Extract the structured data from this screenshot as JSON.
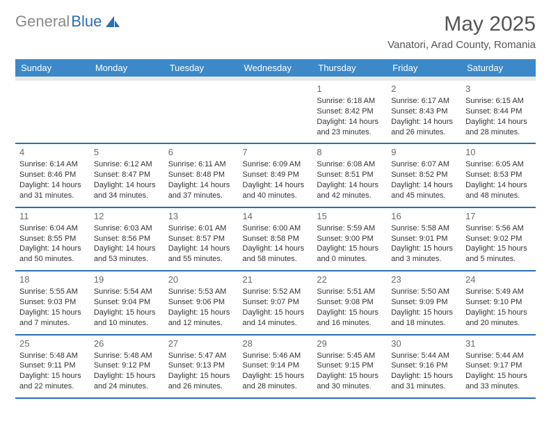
{
  "logo": {
    "word1": "General",
    "word2": "Blue"
  },
  "title": "May 2025",
  "location": "Vanatori, Arad County, Romania",
  "colors": {
    "header_bg": "#3b89c9",
    "header_underline": "#e8e8e8",
    "row_divider": "#2a6db8",
    "logo_gray": "#8a8a8a",
    "logo_blue": "#2a6db8",
    "text": "#333333",
    "muted": "#6a6a6a"
  },
  "weekdays": [
    "Sunday",
    "Monday",
    "Tuesday",
    "Wednesday",
    "Thursday",
    "Friday",
    "Saturday"
  ],
  "weeks": [
    [
      null,
      null,
      null,
      null,
      {
        "n": "1",
        "sr": "6:18 AM",
        "ss": "8:42 PM",
        "dl": "14 hours and 23 minutes."
      },
      {
        "n": "2",
        "sr": "6:17 AM",
        "ss": "8:43 PM",
        "dl": "14 hours and 26 minutes."
      },
      {
        "n": "3",
        "sr": "6:15 AM",
        "ss": "8:44 PM",
        "dl": "14 hours and 28 minutes."
      }
    ],
    [
      {
        "n": "4",
        "sr": "6:14 AM",
        "ss": "8:46 PM",
        "dl": "14 hours and 31 minutes."
      },
      {
        "n": "5",
        "sr": "6:12 AM",
        "ss": "8:47 PM",
        "dl": "14 hours and 34 minutes."
      },
      {
        "n": "6",
        "sr": "6:11 AM",
        "ss": "8:48 PM",
        "dl": "14 hours and 37 minutes."
      },
      {
        "n": "7",
        "sr": "6:09 AM",
        "ss": "8:49 PM",
        "dl": "14 hours and 40 minutes."
      },
      {
        "n": "8",
        "sr": "6:08 AM",
        "ss": "8:51 PM",
        "dl": "14 hours and 42 minutes."
      },
      {
        "n": "9",
        "sr": "6:07 AM",
        "ss": "8:52 PM",
        "dl": "14 hours and 45 minutes."
      },
      {
        "n": "10",
        "sr": "6:05 AM",
        "ss": "8:53 PM",
        "dl": "14 hours and 48 minutes."
      }
    ],
    [
      {
        "n": "11",
        "sr": "6:04 AM",
        "ss": "8:55 PM",
        "dl": "14 hours and 50 minutes."
      },
      {
        "n": "12",
        "sr": "6:03 AM",
        "ss": "8:56 PM",
        "dl": "14 hours and 53 minutes."
      },
      {
        "n": "13",
        "sr": "6:01 AM",
        "ss": "8:57 PM",
        "dl": "14 hours and 55 minutes."
      },
      {
        "n": "14",
        "sr": "6:00 AM",
        "ss": "8:58 PM",
        "dl": "14 hours and 58 minutes."
      },
      {
        "n": "15",
        "sr": "5:59 AM",
        "ss": "9:00 PM",
        "dl": "15 hours and 0 minutes."
      },
      {
        "n": "16",
        "sr": "5:58 AM",
        "ss": "9:01 PM",
        "dl": "15 hours and 3 minutes."
      },
      {
        "n": "17",
        "sr": "5:56 AM",
        "ss": "9:02 PM",
        "dl": "15 hours and 5 minutes."
      }
    ],
    [
      {
        "n": "18",
        "sr": "5:55 AM",
        "ss": "9:03 PM",
        "dl": "15 hours and 7 minutes."
      },
      {
        "n": "19",
        "sr": "5:54 AM",
        "ss": "9:04 PM",
        "dl": "15 hours and 10 minutes."
      },
      {
        "n": "20",
        "sr": "5:53 AM",
        "ss": "9:06 PM",
        "dl": "15 hours and 12 minutes."
      },
      {
        "n": "21",
        "sr": "5:52 AM",
        "ss": "9:07 PM",
        "dl": "15 hours and 14 minutes."
      },
      {
        "n": "22",
        "sr": "5:51 AM",
        "ss": "9:08 PM",
        "dl": "15 hours and 16 minutes."
      },
      {
        "n": "23",
        "sr": "5:50 AM",
        "ss": "9:09 PM",
        "dl": "15 hours and 18 minutes."
      },
      {
        "n": "24",
        "sr": "5:49 AM",
        "ss": "9:10 PM",
        "dl": "15 hours and 20 minutes."
      }
    ],
    [
      {
        "n": "25",
        "sr": "5:48 AM",
        "ss": "9:11 PM",
        "dl": "15 hours and 22 minutes."
      },
      {
        "n": "26",
        "sr": "5:48 AM",
        "ss": "9:12 PM",
        "dl": "15 hours and 24 minutes."
      },
      {
        "n": "27",
        "sr": "5:47 AM",
        "ss": "9:13 PM",
        "dl": "15 hours and 26 minutes."
      },
      {
        "n": "28",
        "sr": "5:46 AM",
        "ss": "9:14 PM",
        "dl": "15 hours and 28 minutes."
      },
      {
        "n": "29",
        "sr": "5:45 AM",
        "ss": "9:15 PM",
        "dl": "15 hours and 30 minutes."
      },
      {
        "n": "30",
        "sr": "5:44 AM",
        "ss": "9:16 PM",
        "dl": "15 hours and 31 minutes."
      },
      {
        "n": "31",
        "sr": "5:44 AM",
        "ss": "9:17 PM",
        "dl": "15 hours and 33 minutes."
      }
    ]
  ],
  "labels": {
    "sunrise": "Sunrise:",
    "sunset": "Sunset:",
    "daylight": "Daylight:"
  }
}
